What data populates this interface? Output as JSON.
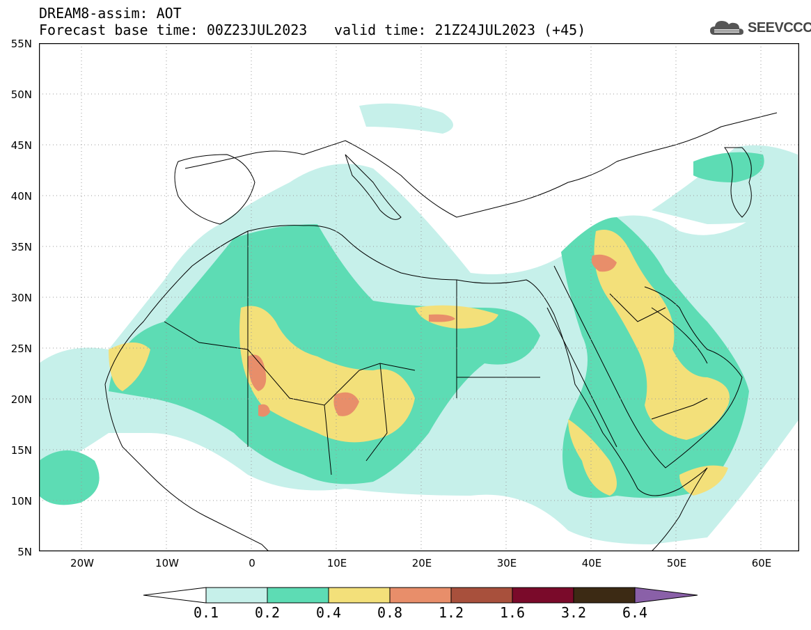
{
  "header": {
    "title": "DREAM8-assim: AOT",
    "forecast_base": "Forecast base time: 00Z23JUL2023",
    "valid": "valid time: 21Z24JUL2023 (+45)"
  },
  "logo": {
    "text": "SEEVCCC",
    "icon": "cloud-icon"
  },
  "axes": {
    "lat_labels": [
      "55N",
      "50N",
      "45N",
      "40N",
      "35N",
      "30N",
      "25N",
      "20N",
      "15N",
      "10N",
      "5N"
    ],
    "lon_labels": [
      "20W",
      "10W",
      "0",
      "10E",
      "20E",
      "30E",
      "40E",
      "50E",
      "60E"
    ]
  },
  "map": {
    "extent": {
      "lon": [
        -25,
        65
      ],
      "lat": [
        5,
        55
      ]
    },
    "variable": "AOT",
    "gridlines": "dotted",
    "colors": {
      "c1": "#c6f0ea",
      "c2": "#5ddcb4",
      "c3": "#f3e07a",
      "c4": "#e88e6a",
      "c5": "#a8503c",
      "c6": "#7a0a2a",
      "c7": "#3c2a14",
      "c8": "#8a60a8",
      "land_border": "#000000"
    }
  },
  "colorbar": {
    "labels": [
      "0.1",
      "0.2",
      "0.4",
      "0.8",
      "1.2",
      "1.6",
      "3.2",
      "6.4"
    ],
    "colors": [
      "#ffffff",
      "#c6f0ea",
      "#5ddcb4",
      "#f3e07a",
      "#e88e6a",
      "#a8503c",
      "#7a0a2a",
      "#3c2a14",
      "#8a60a8"
    ]
  }
}
